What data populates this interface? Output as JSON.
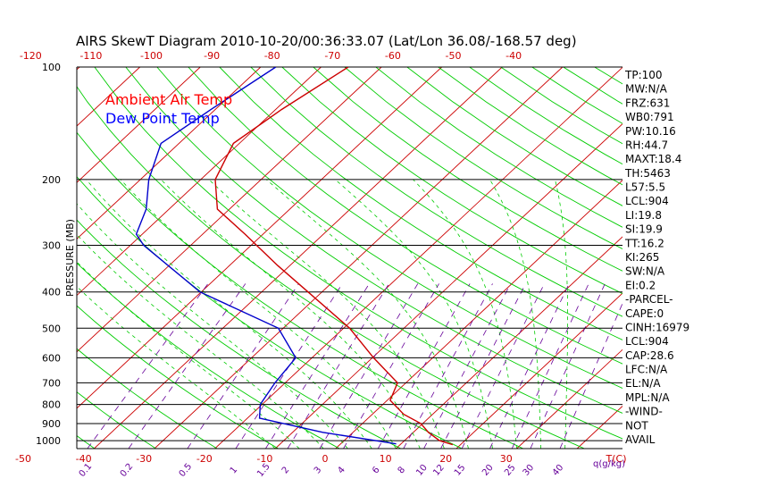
{
  "chart_data": {
    "type": "line",
    "title": "AIRS SkewT Diagram 2010-10-20/00:36:33.07 (Lat/Lon 36.08/-168.57 deg)",
    "ylabel": "PRESSURE (MB)",
    "pressure_ticks": [
      100,
      200,
      300,
      400,
      500,
      600,
      700,
      800,
      900,
      1000
    ],
    "plim": [
      100,
      1050
    ],
    "top_temp_ticks": [
      "-120",
      "-110",
      "-100",
      "-90",
      "-80",
      "-70",
      "-60",
      "-50",
      "-40"
    ],
    "bottom_temp_ticks": [
      "-50",
      "-40",
      "-30",
      "-20",
      "-10",
      "0",
      "10",
      "20",
      "30"
    ],
    "bottom_temp_unit": "T(C)",
    "mixing_ratio_ticks": [
      "0.1",
      "0.2",
      "0.5",
      "1",
      "1.5",
      "2",
      "3",
      "4",
      "6",
      "8",
      "10",
      "12",
      "15",
      "20",
      "25",
      "30",
      "40"
    ],
    "mixing_ratio_unit": "q(g/kg)",
    "legend": [
      {
        "name": "Ambient Air Temp",
        "color": "#ff0000"
      },
      {
        "name": "Dew Point Temp",
        "color": "#0000ff"
      }
    ],
    "series": [
      {
        "name": "Ambient Air Temp",
        "color": "#cc0000",
        "points": [
          {
            "p": 100,
            "t": -65.5
          },
          {
            "p": 130,
            "t": -69
          },
          {
            "p": 160,
            "t": -71
          },
          {
            "p": 200,
            "t": -67.6
          },
          {
            "p": 240,
            "t": -62
          },
          {
            "p": 280,
            "t": -53
          },
          {
            "p": 340,
            "t": -42
          },
          {
            "p": 400,
            "t": -32.3
          },
          {
            "p": 500,
            "t": -19
          },
          {
            "p": 600,
            "t": -9.8
          },
          {
            "p": 700,
            "t": -1.4
          },
          {
            "p": 780,
            "t": 0.5
          },
          {
            "p": 850,
            "t": 5.2
          },
          {
            "p": 900,
            "t": 9.7
          },
          {
            "p": 950,
            "t": 12.5
          },
          {
            "p": 1000,
            "t": 15.8
          },
          {
            "p": 1025,
            "t": 18.7
          }
        ]
      },
      {
        "name": "Dew Point Temp",
        "color": "#0000cc",
        "points": [
          {
            "p": 100,
            "t": -77.5
          },
          {
            "p": 130,
            "t": -80.7
          },
          {
            "p": 160,
            "t": -83
          },
          {
            "p": 200,
            "t": -78.6
          },
          {
            "p": 240,
            "t": -73.8
          },
          {
            "p": 280,
            "t": -71
          },
          {
            "p": 300,
            "t": -67.8
          },
          {
            "p": 400,
            "t": -50.2
          },
          {
            "p": 500,
            "t": -30.8
          },
          {
            "p": 600,
            "t": -22.7
          },
          {
            "p": 700,
            "t": -21.7
          },
          {
            "p": 800,
            "t": -20.3
          },
          {
            "p": 870,
            "t": -18
          },
          {
            "p": 950,
            "t": -5
          },
          {
            "p": 1020,
            "t": 9.2
          }
        ]
      }
    ]
  },
  "stats": [
    "TP:100",
    "MW:N/A",
    "FRZ:631",
    "WB0:791",
    "PW:10.16",
    "RH:44.7",
    "MAXT:18.4",
    "TH:5463",
    "L57:5.5",
    "LCL:904",
    "LI:19.8",
    "SI:19.9",
    "TT:16.2",
    "KI:265",
    "SW:N/A",
    "EI:0.2",
    "-PARCEL-",
    "CAPE:0",
    "CINH:16979",
    "LCL:904",
    "CAP:28.6",
    "LFC:N/A",
    "EL:N/A",
    "MPL:N/A",
    "-WIND-",
    "NOT",
    "AVAIL"
  ],
  "colors": {
    "isotherm": "#cc0000",
    "dry_adiabat": "#00cc00",
    "moist_adiabat": "#00cc00",
    "mixing_ratio": "#660099",
    "isobar": "#000000"
  }
}
